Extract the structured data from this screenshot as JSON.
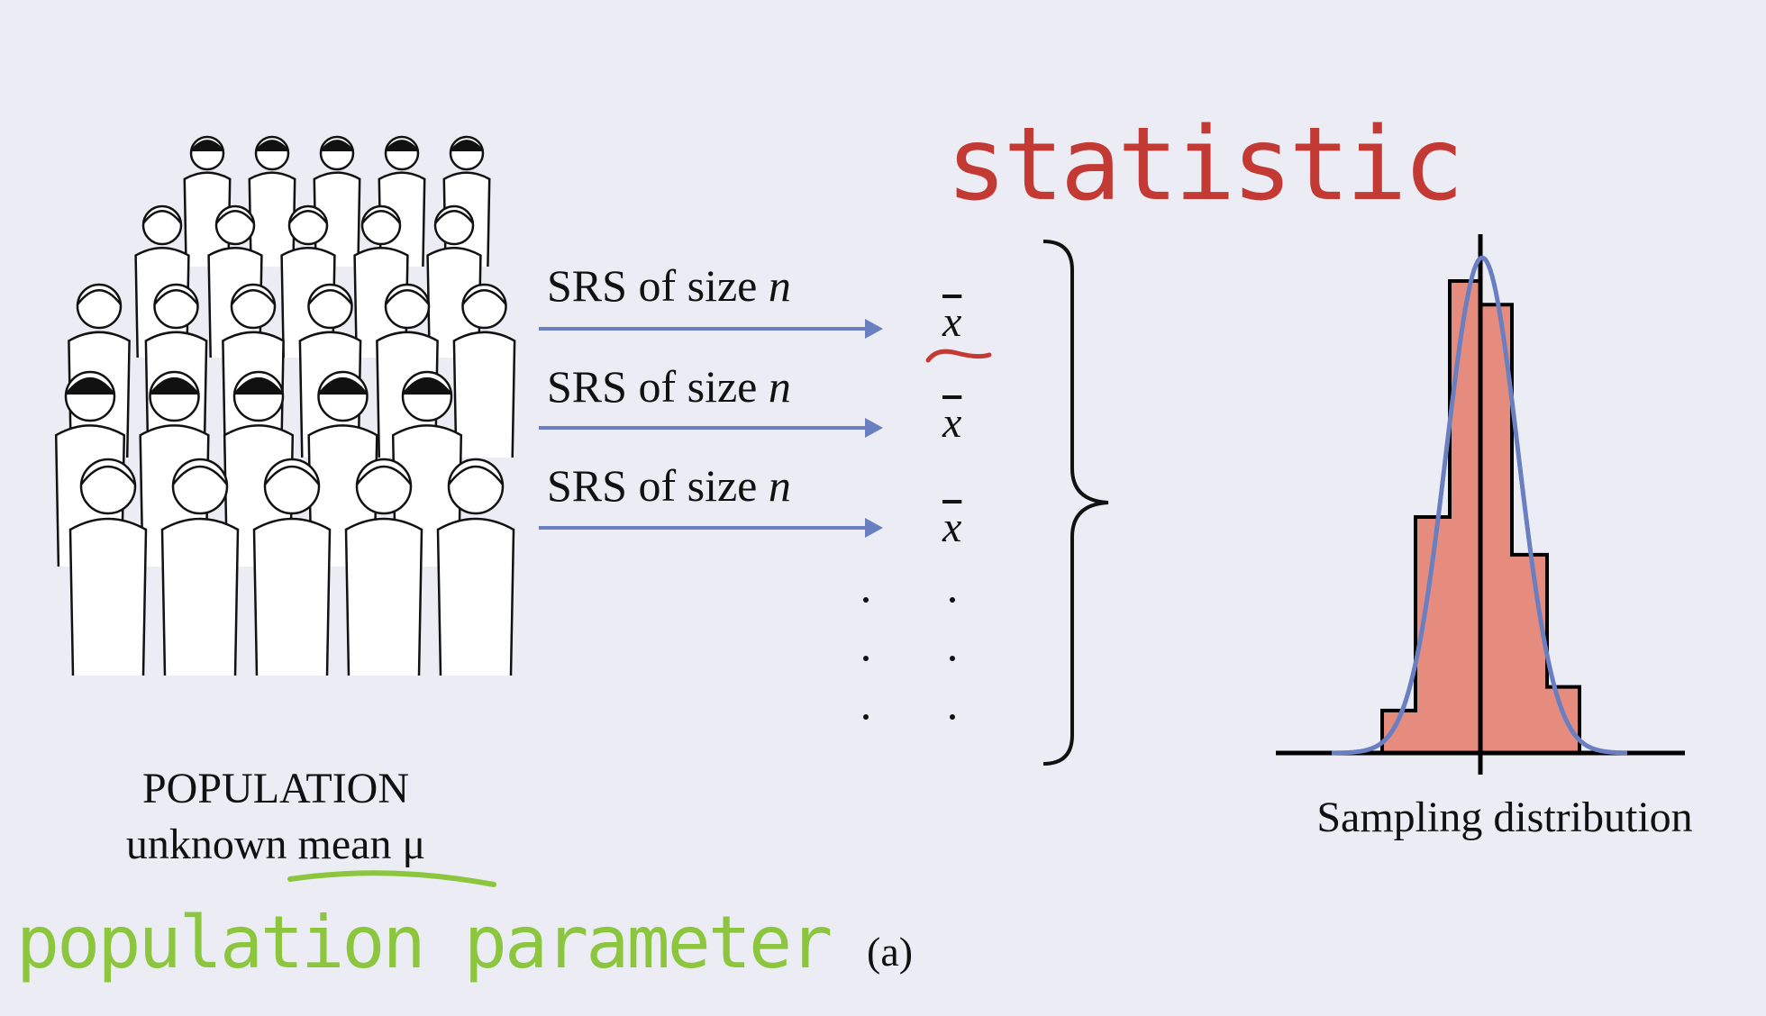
{
  "population": {
    "title": "POPULATION",
    "subtitle": "unknown mean μ"
  },
  "annotations": {
    "statistic": "statistic",
    "population_parameter": "population parameter",
    "statistic_color": "#c23a33",
    "parameter_color": "#8cc63f"
  },
  "samples": [
    {
      "label": "SRS of size n",
      "statistic": "x"
    },
    {
      "label": "SRS of size n",
      "statistic": "x"
    },
    {
      "label": "SRS of size n",
      "statistic": "x"
    }
  ],
  "arrow_color": "#6a7fc1",
  "sampling_distribution_label": "Sampling distribution",
  "figure_label": "(a)",
  "chart_data": {
    "type": "bar",
    "title": "",
    "relative_heights": [
      0.09,
      0.5,
      1.0,
      0.95,
      0.42,
      0.14
    ],
    "bar_color": "#e58c7e",
    "curve": "normal",
    "curve_color": "#6a7fc1",
    "center_line": "mean"
  }
}
